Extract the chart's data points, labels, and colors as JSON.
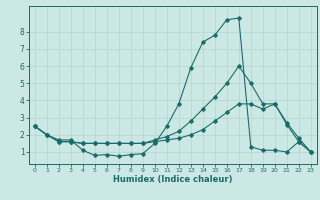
{
  "xlabel": "Humidex (Indice chaleur)",
  "bg_color": "#cce8e4",
  "line_color": "#1a6b6b",
  "grid_color": "#b8d8d4",
  "xlim": [
    -0.5,
    23.5
  ],
  "ylim": [
    0.3,
    9.5
  ],
  "xticks": [
    0,
    1,
    2,
    3,
    4,
    5,
    6,
    7,
    8,
    9,
    10,
    11,
    12,
    13,
    14,
    15,
    16,
    17,
    18,
    19,
    20,
    21,
    22,
    23
  ],
  "yticks": [
    1,
    2,
    3,
    4,
    5,
    6,
    7,
    8
  ],
  "series": [
    {
      "x": [
        0,
        1,
        2,
        3,
        4,
        5,
        6,
        7,
        8,
        9,
        10,
        11,
        12,
        13,
        14,
        15,
        16,
        17,
        18,
        19,
        20,
        21,
        22,
        23
      ],
      "y": [
        2.5,
        2.0,
        1.7,
        1.7,
        1.1,
        0.8,
        0.85,
        0.75,
        0.85,
        0.9,
        1.5,
        2.5,
        3.8,
        5.9,
        7.4,
        7.8,
        8.7,
        8.8,
        1.3,
        1.1,
        1.1,
        1.0,
        1.6,
        1.0
      ]
    },
    {
      "x": [
        0,
        1,
        2,
        3,
        4,
        5,
        6,
        7,
        8,
        9,
        10,
        11,
        12,
        13,
        14,
        15,
        16,
        17,
        18,
        19,
        20,
        21,
        22,
        23
      ],
      "y": [
        2.5,
        2.0,
        1.6,
        1.6,
        1.5,
        1.5,
        1.5,
        1.5,
        1.5,
        1.5,
        1.7,
        1.9,
        2.2,
        2.8,
        3.5,
        4.2,
        5.0,
        6.0,
        5.0,
        3.8,
        3.8,
        2.7,
        1.8,
        1.0
      ]
    },
    {
      "x": [
        0,
        1,
        2,
        3,
        4,
        5,
        6,
        7,
        8,
        9,
        10,
        11,
        12,
        13,
        14,
        15,
        16,
        17,
        18,
        19,
        20,
        21,
        22,
        23
      ],
      "y": [
        2.5,
        2.0,
        1.6,
        1.6,
        1.5,
        1.5,
        1.5,
        1.5,
        1.5,
        1.5,
        1.6,
        1.7,
        1.8,
        2.0,
        2.3,
        2.8,
        3.3,
        3.8,
        3.8,
        3.5,
        3.8,
        2.6,
        1.6,
        1.0
      ]
    }
  ]
}
